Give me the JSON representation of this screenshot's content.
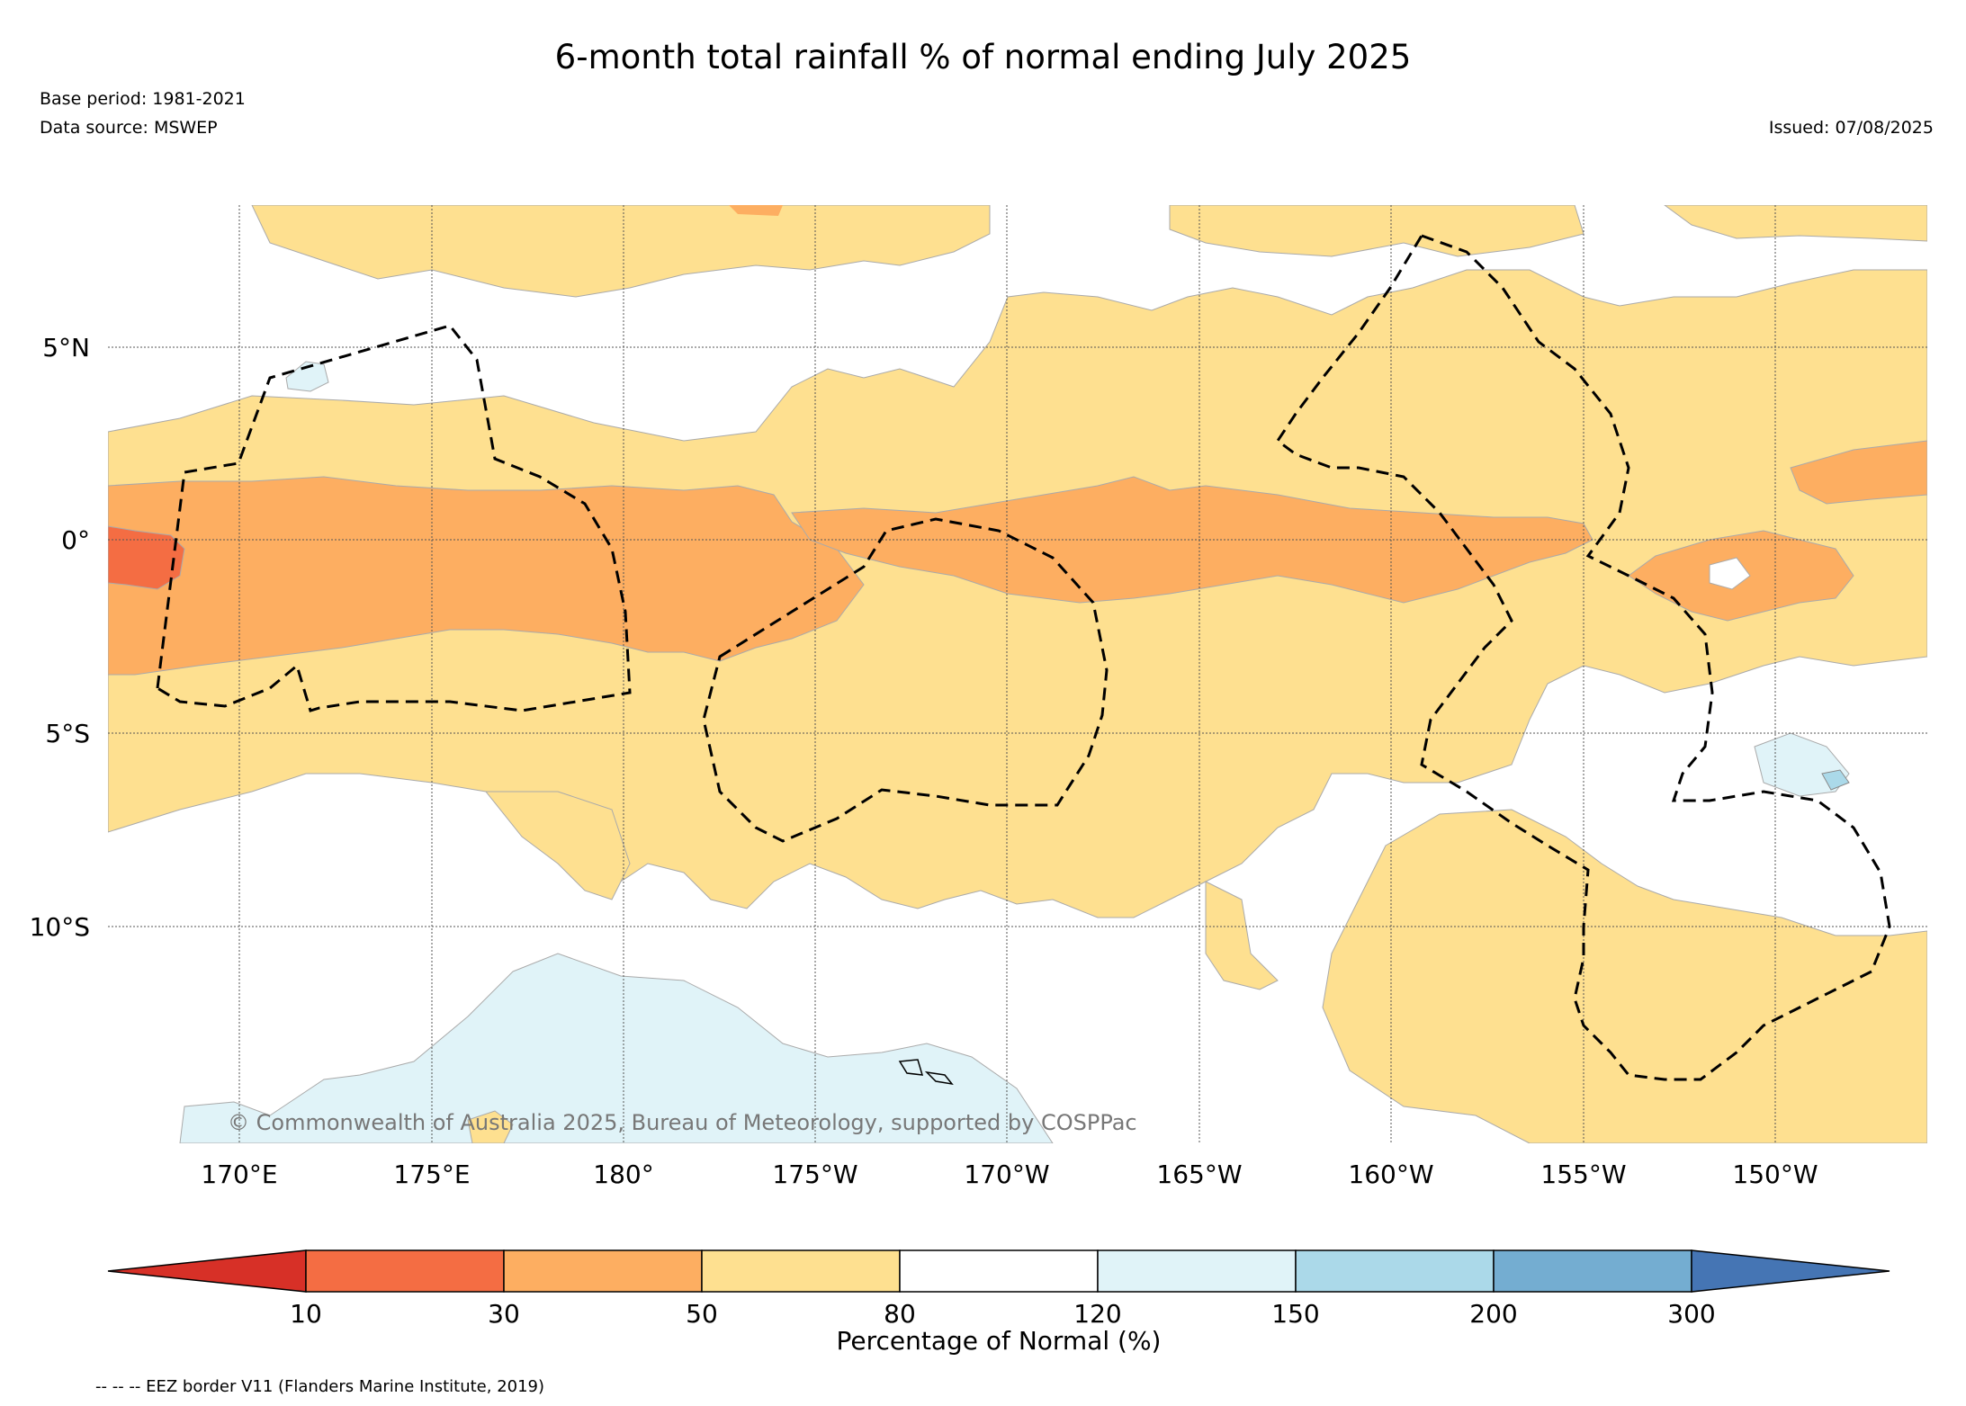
{
  "title": "6-month total rainfall % of normal ending July 2025",
  "base_period": "Base period: 1981-2021",
  "data_source": "Data source: MSWEP",
  "issued": "Issued: 07/08/2025",
  "copyright": "© Commonwealth of Australia 2025, Bureau of Meteorology, supported by COSPPac",
  "lat_labels": [
    "5°N",
    "0°",
    "5°S",
    "10°S"
  ],
  "lon_labels": [
    "170°E",
    "175°E",
    "180°",
    "175°W",
    "170°W",
    "165°W",
    "160°W",
    "155°W",
    "150°W"
  ],
  "colorbar": {
    "title": "Percentage of Normal (%)",
    "ticks": [
      "10",
      "30",
      "50",
      "80",
      "120",
      "150",
      "200",
      "300"
    ],
    "colors": {
      "below_10": "#d73027",
      "10_30": "#f46d43",
      "30_50": "#fdae61",
      "50_80": "#fee090",
      "80_120": "#ffffff",
      "120_150": "#e0f3f8",
      "150_200": "#abd9e9",
      "200_300": "#74add1",
      "above_300": "#4575b4"
    }
  },
  "footnote": "-- -- -- EEZ border V11 (Flanders Marine Institute, 2019)"
}
